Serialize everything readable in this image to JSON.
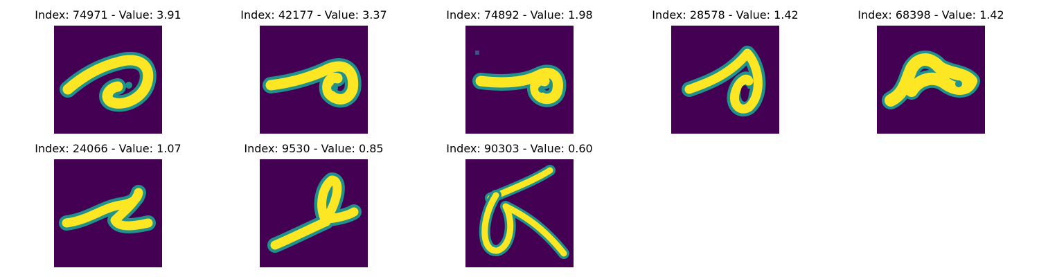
{
  "panels": [
    {
      "title": "Index: 74971 - Value: 3.91",
      "glyph": "loop-hook-left-tail"
    },
    {
      "title": "Index: 42177 - Value: 3.37",
      "glyph": "loop-right-long-stroke"
    },
    {
      "title": "Index: 74892 - Value: 1.98",
      "glyph": "loop-right-long-stroke"
    },
    {
      "title": "Index: 28578 - Value: 1.42",
      "glyph": "loop-right-rising-stroke"
    },
    {
      "title": "Index: 68398 - Value: 1.42",
      "glyph": "blob-hook"
    },
    {
      "title": "Index: 24066 - Value: 1.07",
      "glyph": "slanted-z-stroke"
    },
    {
      "title": "Index: 9530 - Value: 0.85",
      "glyph": "loop-upright-base-stroke"
    },
    {
      "title": "Index: 90303 - Value: 0.60",
      "glyph": "crossed-loop-figure"
    }
  ],
  "colors": {
    "background": "#440154",
    "stroke": "#fde725",
    "edge": "#21918c"
  }
}
